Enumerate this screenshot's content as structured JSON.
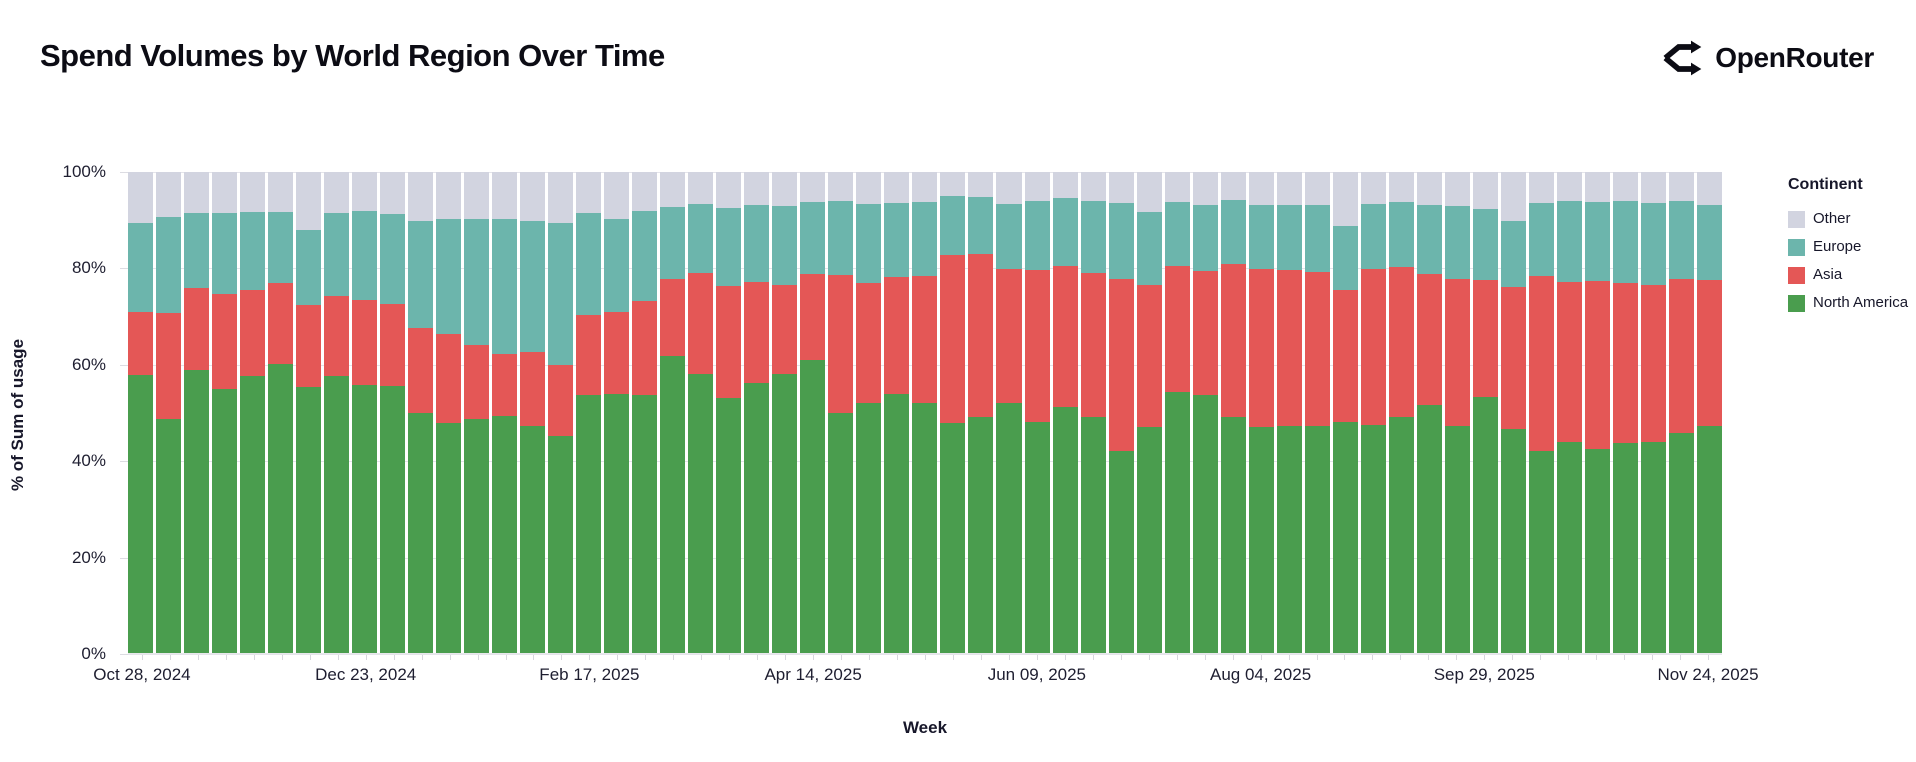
{
  "header": {
    "title": "Spend Volumes by World Region Over Time",
    "brand": "OpenRouter"
  },
  "chart_data": {
    "type": "bar",
    "stacked": true,
    "title": "Spend Volumes by World Region Over Time",
    "xlabel": "Week",
    "ylabel": "% of Sum of usage",
    "ylim": [
      0,
      100
    ],
    "grid": true,
    "y_ticks": [
      0,
      20,
      40,
      60,
      80,
      100
    ],
    "y_tick_labels": [
      "0%",
      "20%",
      "40%",
      "60%",
      "80%",
      "100%"
    ],
    "x_tick_indices": [
      0,
      8,
      16,
      24,
      32,
      40,
      48,
      56
    ],
    "x_tick_labels": [
      "Oct 28, 2024",
      "Dec 23, 2024",
      "Feb 17, 2025",
      "Apr 14, 2025",
      "Jun 09, 2025",
      "Aug 04, 2025",
      "Sep 29, 2025",
      "Nov 24, 2025"
    ],
    "categories": [
      "Oct 28, 2024",
      "Nov 04, 2024",
      "Nov 11, 2024",
      "Nov 18, 2024",
      "Nov 25, 2024",
      "Dec 02, 2024",
      "Dec 09, 2024",
      "Dec 16, 2024",
      "Dec 23, 2024",
      "Dec 30, 2024",
      "Jan 06, 2025",
      "Jan 13, 2025",
      "Jan 20, 2025",
      "Jan 27, 2025",
      "Feb 03, 2025",
      "Feb 10, 2025",
      "Feb 17, 2025",
      "Feb 24, 2025",
      "Mar 03, 2025",
      "Mar 10, 2025",
      "Mar 17, 2025",
      "Mar 24, 2025",
      "Mar 31, 2025",
      "Apr 07, 2025",
      "Apr 14, 2025",
      "Apr 21, 2025",
      "Apr 28, 2025",
      "May 05, 2025",
      "May 12, 2025",
      "May 19, 2025",
      "May 26, 2025",
      "Jun 02, 2025",
      "Jun 09, 2025",
      "Jun 16, 2025",
      "Jun 23, 2025",
      "Jun 30, 2025",
      "Jul 07, 2025",
      "Jul 14, 2025",
      "Jul 21, 2025",
      "Jul 28, 2025",
      "Aug 04, 2025",
      "Aug 11, 2025",
      "Aug 18, 2025",
      "Aug 25, 2025",
      "Sep 01, 2025",
      "Sep 08, 2025",
      "Sep 15, 2025",
      "Sep 22, 2025",
      "Sep 29, 2025",
      "Oct 06, 2025",
      "Oct 13, 2025",
      "Oct 20, 2025",
      "Oct 27, 2025",
      "Nov 03, 2025",
      "Nov 10, 2025",
      "Nov 17, 2025",
      "Nov 24, 2025"
    ],
    "series": [
      {
        "name": "North America",
        "color": "#4a9d4e",
        "values": [
          57.8,
          48.6,
          58.8,
          54.9,
          57.5,
          60.0,
          55.3,
          57.5,
          55.8,
          55.6,
          49.8,
          47.9,
          48.6,
          49.3,
          47.1,
          45.2,
          53.6,
          53.9,
          53.6,
          61.8,
          58.0,
          53.1,
          56.1,
          58.0,
          61.0,
          50.0,
          52.0,
          53.8,
          51.9,
          47.9,
          49.0,
          52.0,
          48.1,
          51.2,
          49.0,
          42.0,
          46.9,
          54.2,
          53.6,
          49.0,
          47.0,
          47.3,
          47.3,
          48.0,
          47.5,
          49.0,
          51.5,
          47.3,
          53.2,
          46.6,
          42.0,
          43.9,
          42.4,
          43.7,
          43.9,
          45.8,
          47.3
        ]
      },
      {
        "name": "Asia",
        "color": "#e45756",
        "values": [
          13.0,
          22.0,
          17.1,
          19.7,
          17.9,
          16.9,
          17.0,
          16.7,
          17.6,
          16.9,
          17.7,
          18.5,
          15.5,
          12.9,
          15.4,
          14.7,
          16.6,
          16.9,
          19.6,
          16.0,
          21.1,
          23.3,
          21.0,
          18.6,
          17.8,
          28.5,
          24.9,
          24.3,
          26.4,
          34.8,
          33.9,
          27.8,
          31.6,
          29.3,
          30.1,
          35.8,
          29.7,
          26.3,
          25.9,
          31.9,
          32.8,
          32.4,
          32.0,
          27.5,
          32.3,
          31.3,
          27.3,
          30.5,
          24.4,
          29.5,
          36.3,
          33.2,
          35.0,
          33.2,
          32.7,
          32.0,
          30.3
        ]
      },
      {
        "name": "Europe",
        "color": "#6cb5ac",
        "values": [
          18.5,
          20.0,
          15.5,
          16.8,
          16.3,
          14.8,
          15.6,
          17.3,
          18.5,
          18.7,
          22.4,
          23.8,
          26.1,
          28.1,
          27.3,
          29.6,
          21.2,
          19.4,
          18.7,
          14.9,
          14.3,
          16.1,
          16.0,
          16.3,
          15.0,
          15.4,
          16.5,
          15.5,
          15.5,
          12.4,
          12.0,
          13.6,
          14.2,
          14.1,
          14.9,
          15.8,
          15.1,
          13.3,
          13.6,
          13.3,
          13.4,
          13.4,
          13.8,
          13.3,
          13.6,
          13.4,
          14.4,
          15.1,
          14.8,
          13.8,
          15.3,
          16.8,
          16.4,
          17.0,
          17.0,
          16.1,
          15.6
        ]
      },
      {
        "name": "Other",
        "color": "#d2d4e0",
        "values": [
          10.7,
          9.4,
          8.6,
          8.6,
          8.3,
          8.3,
          12.1,
          8.5,
          8.1,
          8.8,
          10.1,
          9.8,
          9.8,
          9.7,
          10.2,
          10.5,
          8.6,
          9.8,
          8.1,
          7.3,
          6.6,
          7.5,
          6.9,
          7.1,
          6.2,
          6.1,
          6.6,
          6.4,
          6.2,
          4.9,
          5.1,
          6.6,
          6.1,
          5.4,
          6.0,
          6.4,
          8.3,
          6.2,
          6.9,
          5.8,
          6.8,
          6.9,
          6.9,
          11.2,
          6.6,
          6.3,
          6.8,
          7.1,
          7.6,
          10.1,
          6.4,
          6.1,
          6.2,
          6.1,
          6.4,
          6.1,
          6.8
        ]
      }
    ],
    "legend": {
      "title": "Continent",
      "position": "right",
      "entries": [
        "Other",
        "Europe",
        "Asia",
        "North America"
      ]
    }
  }
}
